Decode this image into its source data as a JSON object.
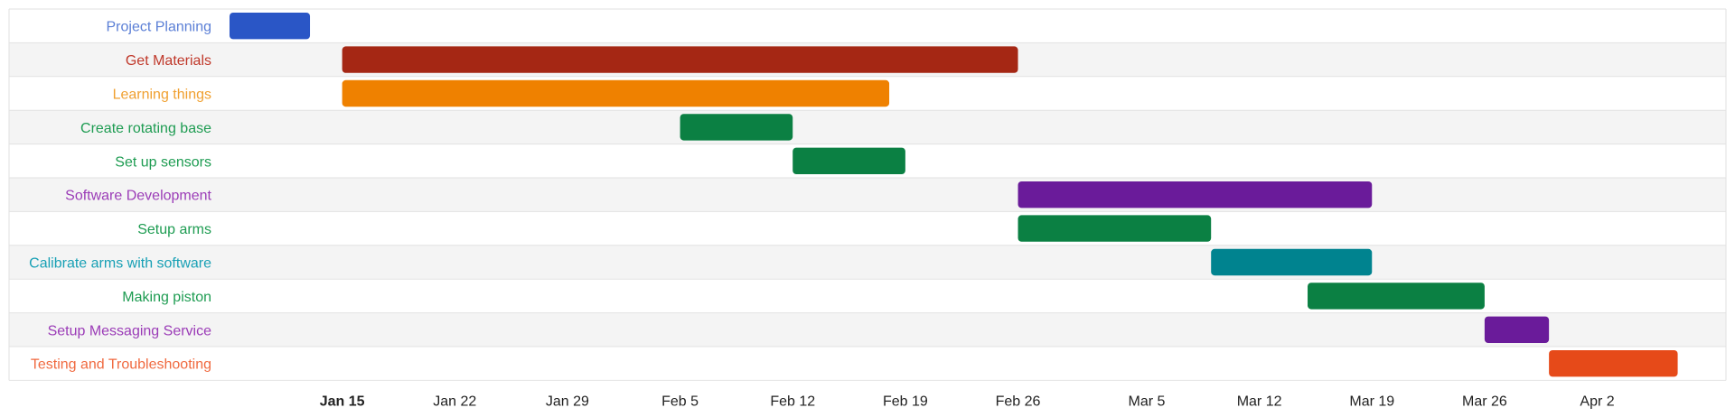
{
  "chart_data": {
    "type": "gantt",
    "x_axis": {
      "type": "date",
      "ticks": [
        "Jan 15",
        "Jan 22",
        "Jan 29",
        "Feb 5",
        "Feb 12",
        "Feb 19",
        "Feb 26",
        "Mar 5",
        "Mar 12",
        "Mar 19",
        "Mar 26",
        "Apr 2"
      ],
      "tick_dates": [
        "01-15",
        "01-22",
        "01-29",
        "02-05",
        "02-12",
        "02-19",
        "02-26",
        "03-05",
        "03-12",
        "03-19",
        "03-26",
        "04-02"
      ],
      "bold_tick": "Jan 15",
      "range": [
        "01-08",
        "04-10"
      ]
    },
    "tasks": [
      {
        "name": "Project Planning",
        "start": "01-08",
        "end": "01-13",
        "color": "#2a56c6",
        "label_color": "#5b7fd6"
      },
      {
        "name": "Get Materials",
        "start": "01-15",
        "end": "02-26",
        "color": "#a52714",
        "label_color": "#c0392b"
      },
      {
        "name": "Learning things",
        "start": "01-15",
        "end": "02-18",
        "color": "#ef8100",
        "label_color": "#f0a030"
      },
      {
        "name": "Create rotating base",
        "start": "02-05",
        "end": "02-12",
        "color": "#0b8043",
        "label_color": "#1e9c52"
      },
      {
        "name": "Set up sensors",
        "start": "02-12",
        "end": "02-19",
        "color": "#0b8043",
        "label_color": "#1e9c52"
      },
      {
        "name": "Software Development",
        "start": "02-26",
        "end": "03-19",
        "color": "#6a1b9a",
        "label_color": "#9b3cb7"
      },
      {
        "name": "Setup arms",
        "start": "02-26",
        "end": "03-09",
        "color": "#0b8043",
        "label_color": "#1e9c52"
      },
      {
        "name": "Calibrate arms with software",
        "start": "03-09",
        "end": "03-19",
        "color": "#00838f",
        "label_color": "#18a0b5"
      },
      {
        "name": "Making piston",
        "start": "03-15",
        "end": "03-26",
        "color": "#0b8043",
        "label_color": "#1e9c52"
      },
      {
        "name": "Setup Messaging Service",
        "start": "03-26",
        "end": "03-30",
        "color": "#6a1b9a",
        "label_color": "#9b3cb7"
      },
      {
        "name": "Testing and Troubleshooting",
        "start": "03-30",
        "end": "04-07",
        "color": "#e64a19",
        "label_color": "#f06a40"
      }
    ],
    "grid": true,
    "row_stripes": [
      "#ffffff",
      "#f4f4f4"
    ]
  }
}
